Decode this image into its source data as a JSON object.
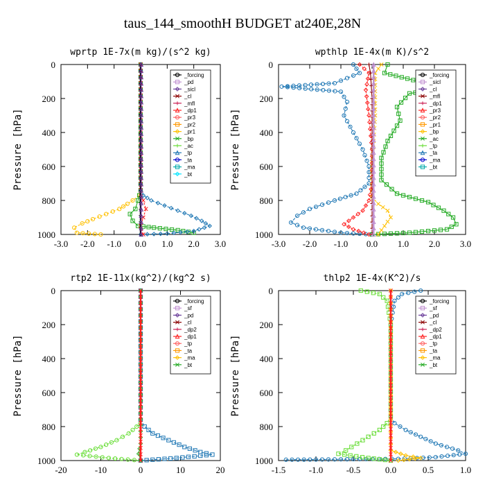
{
  "figure": {
    "title": "taus_144_smoothH  BUDGET at240E,28N"
  },
  "chart_data": [
    {
      "type": "line",
      "title": "wprtp   1E-7x(m kg)/(s^2 kg)",
      "ylabel": "Pressure [hPa]",
      "xlim": [
        -3,
        3
      ],
      "ylim": [
        1000,
        0
      ],
      "xticks": [
        -3.0,
        -2.0,
        -1.0,
        0.0,
        1.0,
        2.0,
        3.0
      ],
      "xtick_labels": [
        "-3.0",
        "-2.0",
        "-1.0",
        "0.0",
        "1.0",
        "2.0",
        "3.0"
      ],
      "yticks": [
        0,
        200,
        400,
        600,
        800,
        1000
      ],
      "ytick_labels": [
        "0",
        "200",
        "400",
        "600",
        "800",
        "1000"
      ],
      "legend": [
        "_forcing",
        "_pd",
        "_sicl",
        "_cl",
        "_mfl",
        "_dp1",
        "_pr3",
        "_pr2",
        "_pr1",
        "_bp",
        "_ac",
        "_tp",
        "_ta",
        "_ma",
        "_bt"
      ],
      "series": [
        {
          "name": "_pr1",
          "color": "#ffc000",
          "points": [
            [
              0,
              0
            ],
            [
              0,
              740
            ],
            [
              -0.05,
              770
            ],
            [
              -0.3,
              800
            ],
            [
              -0.5,
              820
            ],
            [
              -0.8,
              850
            ],
            [
              -1.3,
              880
            ],
            [
              -1.8,
              910
            ],
            [
              -2.2,
              935
            ],
            [
              -2.5,
              960
            ],
            [
              -2.4,
              990
            ],
            [
              -1.5,
              1000
            ]
          ]
        },
        {
          "name": "_bp",
          "color": "#22aa22",
          "points": [
            [
              0,
              0
            ],
            [
              0,
              740
            ],
            [
              -0.1,
              800
            ],
            [
              -0.2,
              850
            ],
            [
              -0.4,
              880
            ],
            [
              -0.3,
              920
            ],
            [
              -0.1,
              950
            ],
            [
              0.5,
              960
            ],
            [
              1.4,
              975
            ],
            [
              2.0,
              990
            ]
          ]
        },
        {
          "name": "_tp",
          "color": "#1f77b4",
          "points": [
            [
              0,
              0
            ],
            [
              0,
              740
            ],
            [
              0.1,
              770
            ],
            [
              0.4,
              800
            ],
            [
              0.9,
              830
            ],
            [
              1.4,
              860
            ],
            [
              1.9,
              890
            ],
            [
              2.3,
              920
            ],
            [
              2.6,
              950
            ],
            [
              2.0,
              980
            ],
            [
              1.0,
              995
            ],
            [
              0,
              1000
            ]
          ]
        },
        {
          "name": "_dp1",
          "color": "#ff2020",
          "points": [
            [
              0,
              0
            ],
            [
              0,
              760
            ],
            [
              0.1,
              800
            ],
            [
              0.2,
              850
            ],
            [
              0.1,
              900
            ],
            [
              0,
              950
            ],
            [
              0.1,
              1000
            ]
          ]
        },
        {
          "name": "_forcing",
          "color": "#000000",
          "points": [
            [
              0,
              0
            ],
            [
              0,
              1000
            ]
          ]
        },
        {
          "name": "_sicl",
          "color": "#6a3d9a",
          "points": [
            [
              0.02,
              0
            ],
            [
              0.02,
              1000
            ]
          ]
        }
      ]
    },
    {
      "type": "line",
      "title": "wpthlp   1E-4x(m K)/s^2",
      "ylabel": "Pressure [hPa]",
      "xlim": [
        -3,
        3
      ],
      "ylim": [
        1000,
        0
      ],
      "xticks": [
        -3.0,
        -2.0,
        -1.0,
        0.0,
        1.0,
        2.0,
        3.0
      ],
      "xtick_labels": [
        "-3.0",
        "-2.0",
        "-1.0",
        "0.0",
        "1.0",
        "2.0",
        "3.0"
      ],
      "yticks": [
        0,
        200,
        400,
        600,
        800,
        1000
      ],
      "ytick_labels": [
        "0",
        "200",
        "400",
        "600",
        "800",
        "1000"
      ],
      "legend": [
        "_forcing",
        "_sicl",
        "_cl",
        "_mfl",
        "_dp1",
        "_pr3",
        "_pr2",
        "_pr1",
        "_bp",
        "_ac",
        "_tp",
        "_ta",
        "_ma",
        "_bt"
      ],
      "series": [
        {
          "name": "_tp",
          "color": "#1f77b4",
          "points": [
            [
              -0.6,
              0
            ],
            [
              -0.4,
              50
            ],
            [
              -1.2,
              110
            ],
            [
              -2.9,
              130
            ],
            [
              -1.0,
              160
            ],
            [
              -0.8,
              220
            ],
            [
              -0.9,
              300
            ],
            [
              -0.6,
              400
            ],
            [
              -0.3,
              500
            ],
            [
              -0.1,
              600
            ],
            [
              -0.1,
              700
            ],
            [
              -0.5,
              760
            ],
            [
              -1.2,
              800
            ],
            [
              -2.0,
              850
            ],
            [
              -2.4,
              890
            ],
            [
              -2.6,
              930
            ],
            [
              -2.2,
              960
            ],
            [
              -1.0,
              990
            ],
            [
              0,
              1000
            ]
          ]
        },
        {
          "name": "_bp",
          "color": "#22aa22",
          "points": [
            [
              0.5,
              0
            ],
            [
              0.4,
              50
            ],
            [
              1.5,
              100
            ],
            [
              2.5,
              140
            ],
            [
              1.2,
              170
            ],
            [
              0.8,
              250
            ],
            [
              0.9,
              330
            ],
            [
              0.5,
              450
            ],
            [
              0.3,
              550
            ],
            [
              0.3,
              680
            ],
            [
              0.8,
              760
            ],
            [
              1.8,
              810
            ],
            [
              2.3,
              860
            ],
            [
              2.6,
              900
            ],
            [
              2.7,
              940
            ],
            [
              2.4,
              970
            ],
            [
              1.2,
              990
            ],
            [
              0,
              1000
            ]
          ]
        },
        {
          "name": "_dp1",
          "color": "#ff2020",
          "points": [
            [
              -0.4,
              0
            ],
            [
              -0.1,
              50
            ],
            [
              -0.2,
              150
            ],
            [
              -0.1,
              300
            ],
            [
              0,
              500
            ],
            [
              0,
              700
            ],
            [
              -0.1,
              800
            ],
            [
              -0.3,
              860
            ],
            [
              -0.6,
              900
            ],
            [
              -0.9,
              940
            ],
            [
              -0.6,
              970
            ],
            [
              -0.1,
              1000
            ]
          ]
        },
        {
          "name": "_pr1",
          "color": "#ffc000",
          "points": [
            [
              0.3,
              0
            ],
            [
              0.1,
              50
            ],
            [
              0.1,
              300
            ],
            [
              0,
              600
            ],
            [
              0,
              780
            ],
            [
              0.2,
              820
            ],
            [
              0.5,
              860
            ],
            [
              0.6,
              900
            ],
            [
              0.4,
              950
            ],
            [
              0.2,
              1000
            ]
          ]
        },
        {
          "name": "_mfl",
          "color": "#8b0000",
          "points": [
            [
              -0.1,
              0
            ],
            [
              -0.05,
              50
            ],
            [
              0,
              200
            ],
            [
              0,
              1000
            ]
          ]
        },
        {
          "name": "_forcing",
          "color": "#c090d0",
          "points": [
            [
              0.05,
              0
            ],
            [
              0.05,
              1000
            ]
          ]
        }
      ]
    },
    {
      "type": "line",
      "title": "rtp2   1E-11x(kg^2)/(kg^2 s)",
      "ylabel": "Pressure [hPa]",
      "xlim": [
        -20,
        20
      ],
      "ylim": [
        1000,
        0
      ],
      "xticks": [
        -20,
        -10,
        0,
        10,
        20
      ],
      "xtick_labels": [
        "-20",
        "-10",
        "0",
        "10",
        "20"
      ],
      "yticks": [
        0,
        200,
        400,
        600,
        800,
        1000
      ],
      "ytick_labels": [
        "0",
        "200",
        "400",
        "600",
        "800",
        "1000"
      ],
      "legend": [
        "_forcing",
        "_sf",
        "_pd",
        "_cl",
        "_dp2",
        "_dp1",
        "_tp",
        "_ta",
        "_ma",
        "_bt"
      ],
      "series": [
        {
          "name": "_dp1",
          "color": "#66dd33",
          "points": [
            [
              0,
              0
            ],
            [
              0,
              760
            ],
            [
              -1,
              800
            ],
            [
              -3,
              840
            ],
            [
              -6,
              880
            ],
            [
              -10,
              920
            ],
            [
              -14,
              950
            ],
            [
              -16,
              965
            ],
            [
              -8,
              985
            ],
            [
              0,
              1000
            ]
          ]
        },
        {
          "name": "_tp",
          "color": "#1f77b4",
          "points": [
            [
              0,
              0
            ],
            [
              0,
              760
            ],
            [
              1,
              800
            ],
            [
              3,
              840
            ],
            [
              7,
              880
            ],
            [
              11,
              920
            ],
            [
              15,
              950
            ],
            [
              18,
              965
            ],
            [
              9,
              985
            ],
            [
              0,
              1000
            ]
          ]
        },
        {
          "name": "_dp2",
          "color": "#22aa22",
          "points": [
            [
              0,
              0
            ],
            [
              0,
              900
            ],
            [
              -0.5,
              960
            ],
            [
              0,
              1000
            ]
          ]
        },
        {
          "name": "_forcing",
          "color": "#ff2020",
          "points": [
            [
              0,
              0
            ],
            [
              0,
              1000
            ]
          ]
        }
      ]
    },
    {
      "type": "line",
      "title": "thlp2   1E-4x(K^2)/s",
      "ylabel": "Pressure [hPa]",
      "xlim": [
        -1.5,
        1.0
      ],
      "ylim": [
        1000,
        0
      ],
      "xticks": [
        -1.5,
        -1.0,
        -0.5,
        0.0,
        0.5,
        1.0
      ],
      "xtick_labels": [
        "-1.5",
        "-1.0",
        "-0.5",
        "0.0",
        "0.5",
        "1.0"
      ],
      "yticks": [
        0,
        200,
        400,
        600,
        800,
        1000
      ],
      "ytick_labels": [
        "0",
        "200",
        "400",
        "600",
        "800",
        "1000"
      ],
      "legend": [
        "_forcing",
        "_sf",
        "_pd",
        "_cl",
        "_dp2",
        "_dp1",
        "_tp",
        "_ta",
        "_ma",
        "_bt"
      ],
      "series": [
        {
          "name": "_tp",
          "color": "#1f77b4",
          "points": [
            [
              0.4,
              0
            ],
            [
              0.15,
              20
            ],
            [
              0.05,
              60
            ],
            [
              0,
              200
            ],
            [
              0,
              740
            ],
            [
              0.05,
              780
            ],
            [
              0.2,
              820
            ],
            [
              0.4,
              860
            ],
            [
              0.6,
              900
            ],
            [
              0.9,
              940
            ],
            [
              1.0,
              960
            ],
            [
              0.6,
              980
            ],
            [
              0.1,
              990
            ],
            [
              -0.5,
              992
            ],
            [
              -1.0,
              994
            ],
            [
              -1.4,
              995
            ]
          ]
        },
        {
          "name": "_dp1",
          "color": "#66dd33",
          "points": [
            [
              -0.4,
              0
            ],
            [
              -0.15,
              20
            ],
            [
              -0.05,
              60
            ],
            [
              0,
              200
            ],
            [
              0,
              740
            ],
            [
              -0.05,
              780
            ],
            [
              -0.15,
              820
            ],
            [
              -0.3,
              860
            ],
            [
              -0.45,
              900
            ],
            [
              -0.6,
              940
            ],
            [
              -0.7,
              960
            ],
            [
              -0.3,
              985
            ],
            [
              0,
              1000
            ]
          ]
        },
        {
          "name": "_pd",
          "color": "#ffc000",
          "points": [
            [
              0,
              0
            ],
            [
              0,
              940
            ],
            [
              0.2,
              970
            ],
            [
              0.4,
              985
            ],
            [
              0.1,
              1000
            ]
          ]
        },
        {
          "name": "_forcing",
          "color": "#ff2020",
          "points": [
            [
              0,
              0
            ],
            [
              0,
              1000
            ]
          ]
        }
      ]
    }
  ]
}
